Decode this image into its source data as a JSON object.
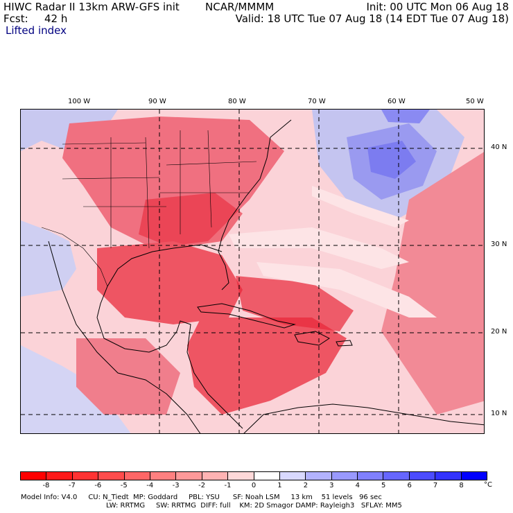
{
  "header": {
    "model_title": "HIWC Radar II 13km ARW-GFS init",
    "institution": "NCAR/MMMM",
    "init_time": "Init: 00 UTC Mon 06 Aug 18",
    "forecast_label": "Fcst:",
    "forecast_hours": "42 h",
    "valid_time": "Valid: 18 UTC Tue 07 Aug 18 (14 EDT Tue 07 Aug 18)",
    "field_name": "Lifted index"
  },
  "map": {
    "longitude_labels": [
      "100 W",
      "90 W",
      "80 W",
      "70 W",
      "60 W",
      "50 W"
    ],
    "latitude_labels": [
      "40 N",
      "30 N",
      "20 N",
      "10 N"
    ],
    "field_colors": {
      "strong_negative": "#e8283a",
      "moderate_negative": "#f07080",
      "weak_negative": "#f9b4bc",
      "near_zero": "#fde4e6",
      "weak_positive": "#c8c8f0",
      "moderate_positive": "#9a9af0",
      "strong_positive": "#6e6ef0"
    }
  },
  "colorbar": {
    "labels": [
      "-8",
      "-7",
      "-6",
      "-5",
      "-4",
      "-3",
      "-2",
      "-1",
      "0",
      "1",
      "2",
      "3",
      "4",
      "5",
      "6",
      "7",
      "8"
    ],
    "unit": "°C",
    "colors": [
      "#ff0000",
      "#ff1a1a",
      "#ff3333",
      "#ff4c4c",
      "#ff6666",
      "#ff8080",
      "#ff9999",
      "#ffb3b3",
      "#ffd9d9",
      "#ffffff",
      "#d9d9ff",
      "#b3b3ff",
      "#9999ff",
      "#8080ff",
      "#6666ff",
      "#4c4cff",
      "#3333ff",
      "#0000ff"
    ]
  },
  "model_info": {
    "line1": "Model Info: V4.0     CU: N_Tiedt  MP: Goddard     PBL: YSU      SF: Noah LSM     13 km    51 levels   96 sec",
    "line2": "LW: RRTMG     SW: RRTMG  DIFF: full    KM: 2D Smagor DAMP: Rayleigh3   SFLAY: MM5"
  }
}
